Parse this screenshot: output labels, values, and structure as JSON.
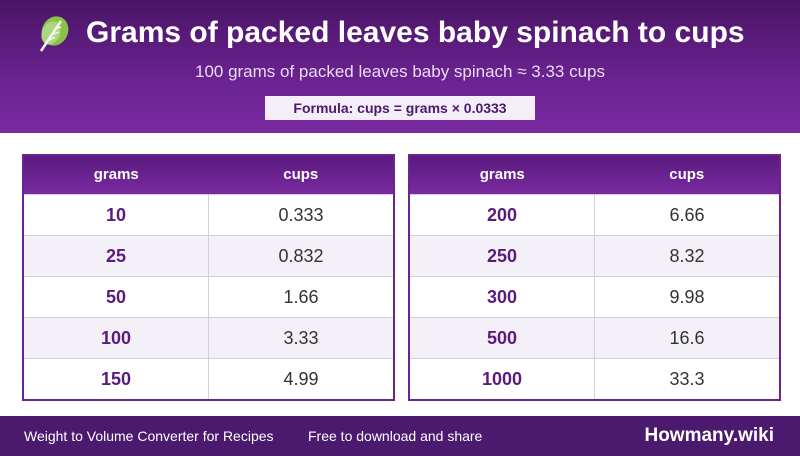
{
  "header": {
    "icon": "leafy-greens-icon",
    "title": "Grams of packed leaves baby spinach to cups",
    "subtitle": "100 grams of packed leaves baby spinach ≈ 3.33 cups",
    "formula": "Formula: cups = grams × 0.0333"
  },
  "colors": {
    "header_top": "#4a1466",
    "header_bottom": "#7a2aa0",
    "accent_text": "#5a1a7e",
    "footer_bg": "#4b1a6e"
  },
  "tables": {
    "left": {
      "headers": [
        "grams",
        "cups"
      ],
      "rows": [
        {
          "grams": "10",
          "cups": "0.333"
        },
        {
          "grams": "25",
          "cups": "0.832"
        },
        {
          "grams": "50",
          "cups": "1.66"
        },
        {
          "grams": "100",
          "cups": "3.33"
        },
        {
          "grams": "150",
          "cups": "4.99"
        }
      ]
    },
    "right": {
      "headers": [
        "grams",
        "cups"
      ],
      "rows": [
        {
          "grams": "200",
          "cups": "6.66"
        },
        {
          "grams": "250",
          "cups": "8.32"
        },
        {
          "grams": "300",
          "cups": "9.98"
        },
        {
          "grams": "500",
          "cups": "16.6"
        },
        {
          "grams": "1000",
          "cups": "33.3"
        }
      ]
    }
  },
  "footer": {
    "left_text": "Weight to Volume Converter for Recipes",
    "mid_text": "Free to download and share",
    "brand": "Howmany.wiki"
  }
}
